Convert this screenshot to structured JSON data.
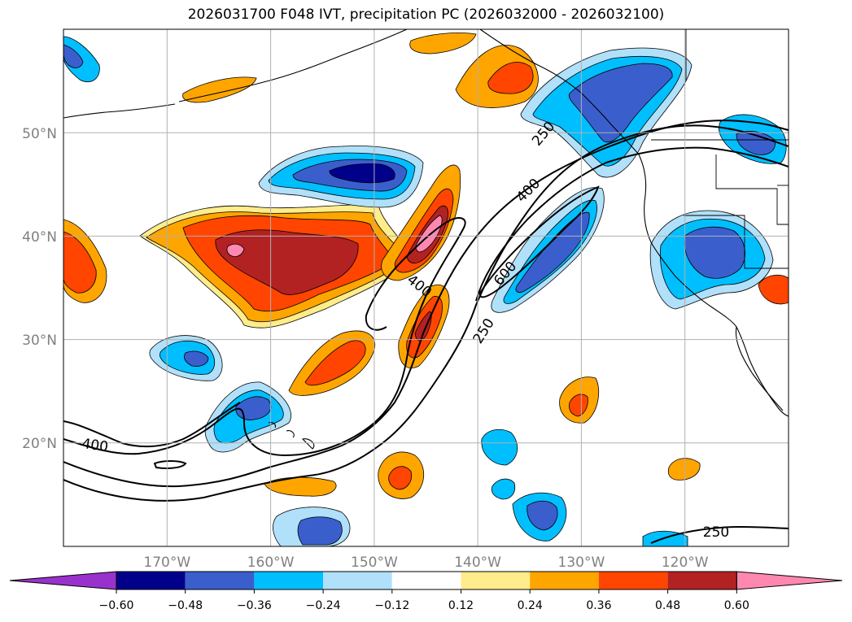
{
  "title": "2026031700 F048 IVT, precipitation PC (2026032000 - 2026032100)",
  "colors": {
    "levels": [
      "#9932cc",
      "#00008b",
      "#3a5fcd",
      "#00bfff",
      "#b0e0fa",
      "#ffffff",
      "#ffec8b",
      "#ffa500",
      "#ff4500",
      "#b22222",
      "#ff88b0"
    ],
    "contour": "#000000",
    "grid": "#b0b0b0",
    "axis_label": "#808080"
  },
  "chart_data": {
    "type": "filled-contour map",
    "title": "2026031700 F048 IVT, precipitation PC (2026032000 - 2026032100)",
    "x_axis": {
      "range": [
        -180,
        -110
      ],
      "ticks": [
        -170,
        -160,
        -150,
        -140,
        -130,
        -120
      ],
      "tick_labels": [
        "170°W",
        "160°W",
        "150°W",
        "140°W",
        "130°W",
        "120°W"
      ]
    },
    "y_axis": {
      "range": [
        10,
        60
      ],
      "ticks": [
        20,
        30,
        40,
        50
      ],
      "tick_labels": [
        "20°N",
        "30°N",
        "40°N",
        "50°N"
      ]
    },
    "grid": true,
    "colorbar": {
      "levels": [
        -0.6,
        -0.48,
        -0.36,
        -0.24,
        -0.12,
        0.12,
        0.24,
        0.36,
        0.48,
        0.6
      ],
      "tick_labels": [
        "−0.60",
        "−0.48",
        "−0.36",
        "−0.24",
        "−0.12",
        "0.12",
        "0.24",
        "0.36",
        "0.48",
        "0.60"
      ],
      "extend": "both",
      "orientation": "horizontal"
    },
    "ivt_contours": {
      "levels": [
        250,
        400,
        600
      ],
      "labels": [
        {
          "text": "250",
          "lon": -133.6,
          "lat": 50.5,
          "angle": -50
        },
        {
          "text": "400",
          "lon": -135.7,
          "lat": 44.6,
          "angle": -45
        },
        {
          "text": "400",
          "lon": -145.6,
          "lat": 35.0,
          "angle": 38
        },
        {
          "text": "600",
          "lon": -137.7,
          "lat": 35.7,
          "angle": -50
        },
        {
          "text": "250",
          "lon": -140.0,
          "lat": 31.0,
          "angle": -58
        },
        {
          "text": "400",
          "lon": -176.8,
          "lat": 19.8,
          "angle": 8
        },
        {
          "text": "250",
          "lon": -117.0,
          "lat": 11.4,
          "angle": 0
        }
      ]
    },
    "precip_pc_regions": [
      {
        "level_index": 9,
        "label": "0.48",
        "region": "central North Pacific near 40N 160W"
      },
      {
        "level_index": 10,
        "label": "0.60",
        "region": "near 40N 143W and 39N 166W"
      },
      {
        "level_index": 1,
        "label": "-0.60",
        "region": "near 46N 152W"
      },
      {
        "level_index": 2,
        "label": "-0.48",
        "region": "California coast and British Columbia"
      }
    ]
  }
}
